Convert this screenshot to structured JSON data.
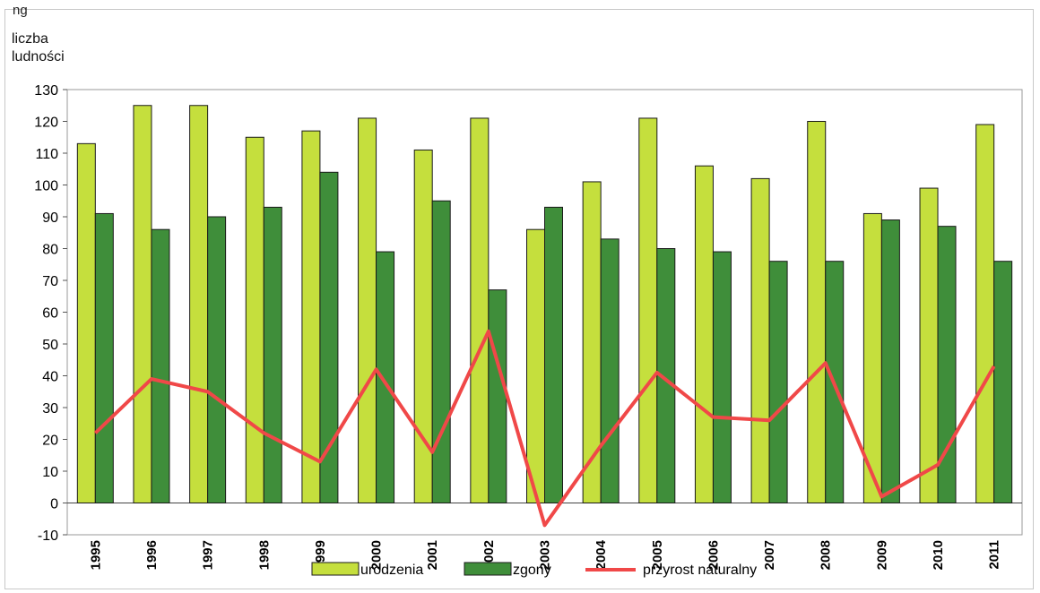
{
  "header": {
    "partial_caption": "ng"
  },
  "chart_data": {
    "type": "bar",
    "ylabel_lines": [
      "liczba",
      "ludności"
    ],
    "xlabel": "",
    "ylim": [
      -10,
      130
    ],
    "yticks": [
      -10,
      0,
      10,
      20,
      30,
      40,
      50,
      60,
      70,
      80,
      90,
      100,
      110,
      120,
      130
    ],
    "categories": [
      "1995",
      "1996",
      "1997",
      "1998",
      "1999",
      "2000",
      "2001",
      "2002",
      "2003",
      "2004",
      "2005",
      "2006",
      "2007",
      "2008",
      "2009",
      "2010",
      "2011"
    ],
    "series": [
      {
        "name": "urodzenia",
        "kind": "bar",
        "color": "#c5df3d",
        "values": [
          113,
          125,
          125,
          115,
          117,
          121,
          111,
          121,
          86,
          101,
          121,
          106,
          102,
          120,
          91,
          99,
          119
        ]
      },
      {
        "name": "zgony",
        "kind": "bar",
        "color": "#3f8e3a",
        "values": [
          91,
          86,
          90,
          93,
          104,
          79,
          95,
          67,
          93,
          83,
          80,
          79,
          76,
          76,
          89,
          87,
          76
        ]
      },
      {
        "name": "przyrost naturalny",
        "kind": "line",
        "color": "#f04848",
        "values": [
          22,
          39,
          35,
          22,
          13,
          42,
          16,
          54,
          -7,
          18,
          41,
          27,
          26,
          44,
          2,
          12,
          43
        ]
      }
    ],
    "legend_position": "bottom",
    "grid": false
  }
}
